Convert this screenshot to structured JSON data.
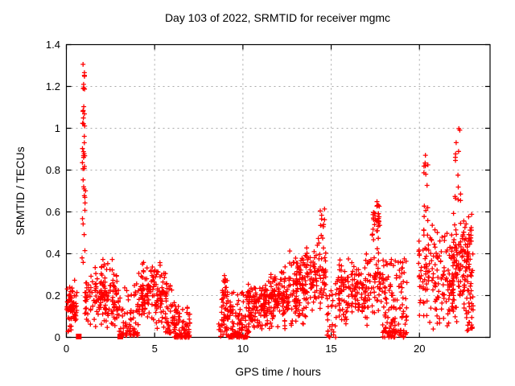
{
  "chart_data": {
    "type": "scatter",
    "title": "Day 103 of 2022, SRMTID for receiver mgmc",
    "xlabel": "GPS time / hours",
    "ylabel": "SRMTID / TECUs",
    "xlim": [
      0,
      24
    ],
    "ylim": [
      0,
      1.4
    ],
    "x_tick_values": [
      0,
      5,
      10,
      15,
      20
    ],
    "x_tick_labels": [
      "0",
      "5",
      "10",
      "15",
      "20"
    ],
    "y_tick_values": [
      0,
      0.2,
      0.4,
      0.6,
      0.8,
      1.0,
      1.2,
      1.4
    ],
    "y_tick_labels": [
      "0",
      "0.2",
      "0.4",
      "0.6",
      "0.8",
      "1",
      "1.2",
      "1.4"
    ],
    "grid": true,
    "legend": "none",
    "colors": {
      "marker": "#ff0000",
      "grid": "#a8a8a8",
      "border": "#000000",
      "text": "#000000"
    },
    "marker": {
      "shape": "plus",
      "size": 7
    },
    "square_markers": [
      [
        0.7,
        0.004
      ],
      [
        3.05,
        0.004
      ]
    ],
    "seed": 42,
    "clusters": [
      {
        "x": [
          0.02,
          0.14
        ],
        "y": [
          0.02,
          0.26
        ],
        "n": 12,
        "bias": "uniform"
      },
      {
        "x": [
          0.15,
          0.6
        ],
        "y": [
          0.0,
          0.29
        ],
        "n": 55,
        "bias": "mid"
      },
      {
        "x": [
          0.88,
          1.08
        ],
        "y": [
          0.35,
          0.78
        ],
        "n": 14,
        "bias": "uniform"
      },
      {
        "x": [
          0.9,
          1.06
        ],
        "y": [
          0.78,
          0.97
        ],
        "n": 12,
        "bias": "uniform"
      },
      {
        "x": [
          0.92,
          1.04
        ],
        "y": [
          1.0,
          1.16
        ],
        "n": 8,
        "bias": "uniform"
      },
      {
        "x": [
          0.93,
          1.05
        ],
        "y": [
          1.18,
          1.31
        ],
        "n": 9,
        "bias": "uniform"
      },
      {
        "x": [
          1.05,
          2.9
        ],
        "y": [
          0.03,
          0.33
        ],
        "n": 150,
        "bias": "mid"
      },
      {
        "x": [
          1.5,
          2.6
        ],
        "y": [
          0.3,
          0.4
        ],
        "n": 12,
        "bias": "uniform"
      },
      {
        "x": [
          2.9,
          4.1
        ],
        "y": [
          0.01,
          0.26
        ],
        "n": 80,
        "bias": "low"
      },
      {
        "x": [
          4.1,
          5.05
        ],
        "y": [
          0.04,
          0.37
        ],
        "n": 85,
        "bias": "mid"
      },
      {
        "x": [
          5.05,
          5.65
        ],
        "y": [
          0.03,
          0.38
        ],
        "n": 55,
        "bias": "mid"
      },
      {
        "x": [
          5.6,
          6.15
        ],
        "y": [
          0.02,
          0.26
        ],
        "n": 45,
        "bias": "low"
      },
      {
        "x": [
          6.1,
          7.0
        ],
        "y": [
          0.0,
          0.15
        ],
        "n": 85,
        "bias": "low"
      },
      {
        "x": [
          8.6,
          8.78
        ],
        "y": [
          0.0,
          0.08
        ],
        "n": 6,
        "bias": "low"
      },
      {
        "x": [
          8.78,
          9.15
        ],
        "y": [
          0.0,
          0.3
        ],
        "n": 45,
        "bias": "uniform"
      },
      {
        "x": [
          9.1,
          10.35
        ],
        "y": [
          0.0,
          0.22
        ],
        "n": 130,
        "bias": "low"
      },
      {
        "x": [
          10.3,
          11.4
        ],
        "y": [
          0.02,
          0.28
        ],
        "n": 120,
        "bias": "mid"
      },
      {
        "x": [
          11.4,
          12.6
        ],
        "y": [
          0.03,
          0.35
        ],
        "n": 120,
        "bias": "mid"
      },
      {
        "x": [
          12.6,
          13.6
        ],
        "y": [
          0.02,
          0.46
        ],
        "n": 110,
        "bias": "mid"
      },
      {
        "x": [
          13.6,
          14.75
        ],
        "y": [
          0.08,
          0.5
        ],
        "n": 95,
        "bias": "mid"
      },
      {
        "x": [
          14.35,
          14.65
        ],
        "y": [
          0.45,
          0.62
        ],
        "n": 10,
        "bias": "uniform"
      },
      {
        "x": [
          14.75,
          15.3
        ],
        "y": [
          0.0,
          0.26
        ],
        "n": 28,
        "bias": "low"
      },
      {
        "x": [
          15.3,
          17.15
        ],
        "y": [
          0.04,
          0.4
        ],
        "n": 150,
        "bias": "mid"
      },
      {
        "x": [
          17.15,
          17.9
        ],
        "y": [
          0.1,
          0.45
        ],
        "n": 45,
        "bias": "mid"
      },
      {
        "x": [
          17.3,
          17.75
        ],
        "y": [
          0.42,
          0.7
        ],
        "n": 32,
        "bias": "mid"
      },
      {
        "x": [
          17.9,
          19.3
        ],
        "y": [
          0.0,
          0.38
        ],
        "n": 140,
        "bias": "low"
      },
      {
        "x": [
          20.25,
          20.5
        ],
        "y": [
          0.4,
          0.89
        ],
        "n": 16,
        "bias": "uniform"
      },
      {
        "x": [
          19.95,
          21.95
        ],
        "y": [
          0.02,
          0.55
        ],
        "n": 165,
        "bias": "mid"
      },
      {
        "x": [
          21.95,
          22.35
        ],
        "y": [
          0.62,
          1.1
        ],
        "n": 14,
        "bias": "uniform"
      },
      {
        "x": [
          21.9,
          23.05
        ],
        "y": [
          0.05,
          0.63
        ],
        "n": 150,
        "bias": "mid"
      },
      {
        "x": [
          22.7,
          23.05
        ],
        "y": [
          0.02,
          0.15
        ],
        "n": 12,
        "bias": "low"
      }
    ]
  }
}
